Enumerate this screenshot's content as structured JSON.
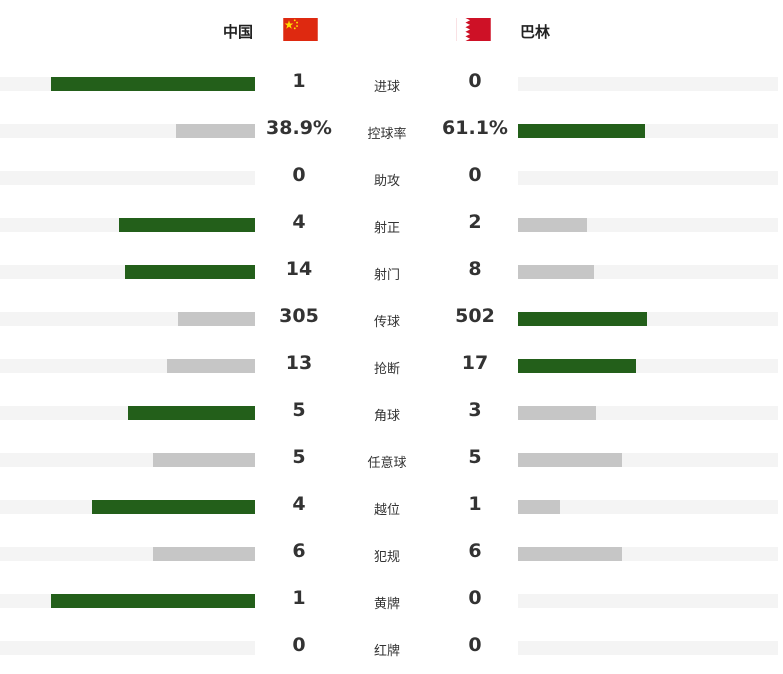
{
  "teams": {
    "home": {
      "name": "中国",
      "flag": "china-flag-icon"
    },
    "away": {
      "name": "巴林",
      "flag": "bahrain-flag-icon"
    }
  },
  "colors": {
    "leader": "#235f1a",
    "other": "#c6c6c6",
    "track": "#f4f4f4"
  },
  "stats": [
    {
      "label": "进球",
      "home": "1",
      "away": "0",
      "home_share": 1.0,
      "away_share": 0.0
    },
    {
      "label": "控球率",
      "home": "38.9%",
      "away": "61.1%",
      "home_share": 0.389,
      "away_share": 0.611
    },
    {
      "label": "助攻",
      "home": "0",
      "away": "0",
      "home_share": 0.0,
      "away_share": 0.0
    },
    {
      "label": "射正",
      "home": "4",
      "away": "2",
      "home_share": 0.667,
      "away_share": 0.333
    },
    {
      "label": "射门",
      "home": "14",
      "away": "8",
      "home_share": 0.636,
      "away_share": 0.364
    },
    {
      "label": "传球",
      "home": "305",
      "away": "502",
      "home_share": 0.378,
      "away_share": 0.622
    },
    {
      "label": "抢断",
      "home": "13",
      "away": "17",
      "home_share": 0.433,
      "away_share": 0.567
    },
    {
      "label": "角球",
      "home": "5",
      "away": "3",
      "home_share": 0.625,
      "away_share": 0.375
    },
    {
      "label": "任意球",
      "home": "5",
      "away": "5",
      "home_share": 0.5,
      "away_share": 0.5
    },
    {
      "label": "越位",
      "home": "4",
      "away": "1",
      "home_share": 0.8,
      "away_share": 0.2
    },
    {
      "label": "犯规",
      "home": "6",
      "away": "6",
      "home_share": 0.5,
      "away_share": 0.5
    },
    {
      "label": "黄牌",
      "home": "1",
      "away": "0",
      "home_share": 1.0,
      "away_share": 0.0
    },
    {
      "label": "红牌",
      "home": "0",
      "away": "0",
      "home_share": 0.0,
      "away_share": 0.0
    }
  ]
}
